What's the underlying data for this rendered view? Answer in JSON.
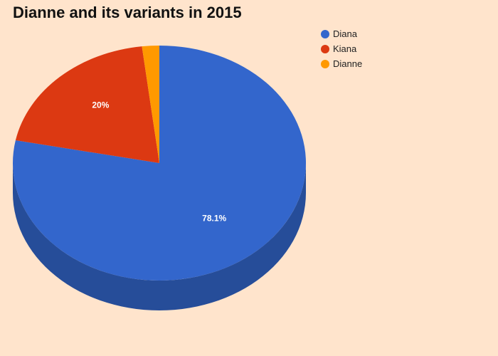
{
  "chart_data": {
    "type": "pie",
    "title": "Dianne and its variants in 2015",
    "three_d": true,
    "legend_position": "top-right",
    "categories": [
      "Diana",
      "Kiana",
      "Dianne"
    ],
    "values": [
      78.1,
      20.0,
      1.9
    ],
    "data_labels": [
      "78.1%",
      "20%",
      ""
    ],
    "colors": [
      "#3366cc",
      "#dc3912",
      "#ff9900"
    ],
    "side_colors": [
      "#264d99",
      "#a52b0e",
      "#bf7300"
    ]
  }
}
